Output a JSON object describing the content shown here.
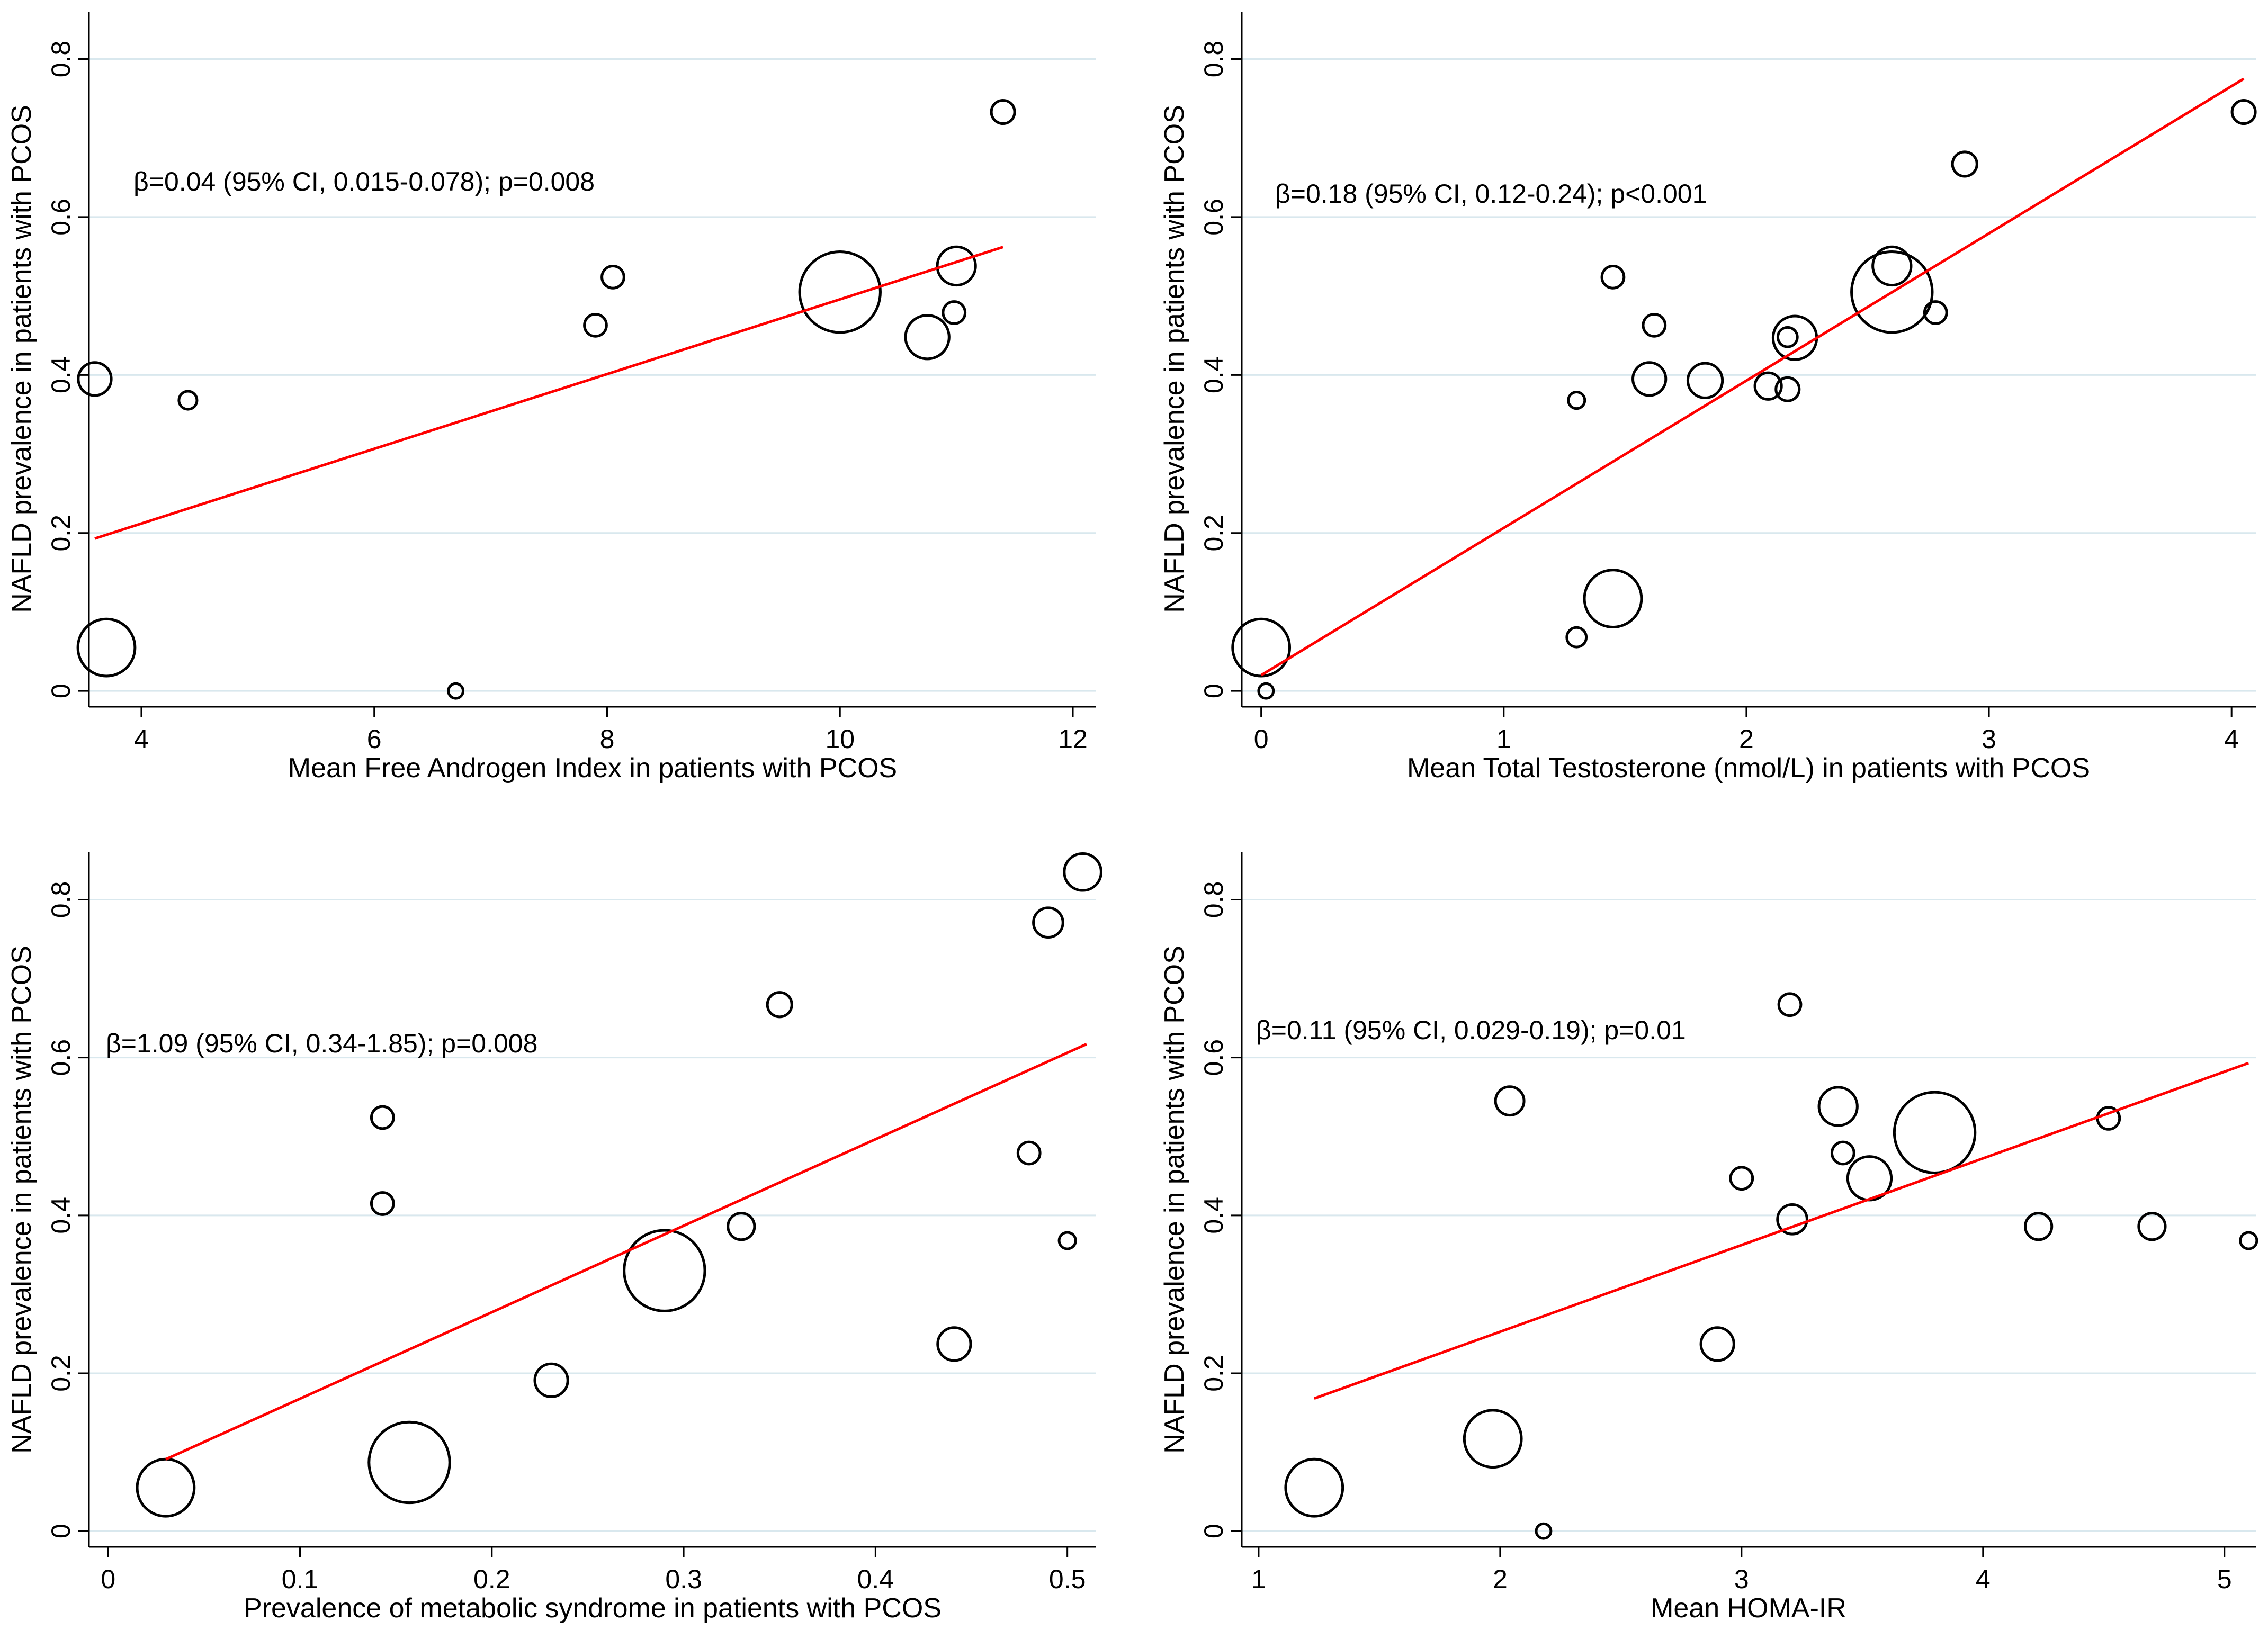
{
  "colors": {
    "axis": "#000000",
    "grid": "#d9e8ee",
    "fit_line": "#ff0000",
    "bubble_stroke": "#000000",
    "background": "#ffffff"
  },
  "chart_data": [
    {
      "type": "scatter",
      "xlabel": "Mean Free Androgen Index in patients with PCOS",
      "ylabel": "NAFLD prevalence in patients with PCOS",
      "xlim": [
        3.55,
        12.2
      ],
      "ylim": [
        -0.02,
        0.86
      ],
      "xticks": [
        4,
        6,
        8,
        10,
        12
      ],
      "xtick_labels": [
        "4",
        "6",
        "8",
        "10",
        "12"
      ],
      "yticks": [
        0,
        0.2,
        0.4,
        0.6,
        0.8
      ],
      "ytick_labels": [
        "0",
        "0.2",
        "0.4",
        "0.6",
        "0.8"
      ],
      "annotation": "β=0.04 (95% CI, 0.015-0.078); p=0.008",
      "fit_line": {
        "x": [
          3.6,
          11.4
        ],
        "y": [
          0.193,
          0.562
        ]
      },
      "points": [
        {
          "x": 3.6,
          "y": 0.395,
          "weight": 2
        },
        {
          "x": 3.7,
          "y": 0.055,
          "weight": 6
        },
        {
          "x": 4.4,
          "y": 0.368,
          "weight": 0.6
        },
        {
          "x": 6.7,
          "y": 0.0,
          "weight": 0.4
        },
        {
          "x": 7.9,
          "y": 0.463,
          "weight": 0.9
        },
        {
          "x": 8.05,
          "y": 0.524,
          "weight": 0.9
        },
        {
          "x": 10.0,
          "y": 0.505,
          "weight": 12
        },
        {
          "x": 10.75,
          "y": 0.448,
          "weight": 3.5
        },
        {
          "x": 10.98,
          "y": 0.479,
          "weight": 0.9
        },
        {
          "x": 11.0,
          "y": 0.538,
          "weight": 2.7
        },
        {
          "x": 11.4,
          "y": 0.733,
          "weight": 1
        }
      ]
    },
    {
      "type": "scatter",
      "xlabel": "Mean Total Testosterone (nmol/L) in patients with PCOS",
      "ylabel": "NAFLD prevalence in patients with PCOS",
      "xlim": [
        -0.08,
        4.1
      ],
      "ylim": [
        -0.02,
        0.86
      ],
      "xticks": [
        0,
        1,
        2,
        3,
        4
      ],
      "xtick_labels": [
        "0",
        "1",
        "2",
        "3",
        "4"
      ],
      "yticks": [
        0,
        0.2,
        0.4,
        0.6,
        0.8
      ],
      "ytick_labels": [
        "0",
        "0.2",
        "0.4",
        "0.6",
        "0.8"
      ],
      "annotation": "β=0.18 (95% CI, 0.12-0.24); p<0.001",
      "fit_line": {
        "x": [
          0.0,
          4.05
        ],
        "y": [
          0.02,
          0.775
        ]
      },
      "points": [
        {
          "x": 0.0,
          "y": 0.055,
          "weight": 6
        },
        {
          "x": 0.02,
          "y": 0.0,
          "weight": 0.4
        },
        {
          "x": 1.3,
          "y": 0.368,
          "weight": 0.5
        },
        {
          "x": 1.3,
          "y": 0.068,
          "weight": 0.7
        },
        {
          "x": 1.45,
          "y": 0.117,
          "weight": 6
        },
        {
          "x": 1.45,
          "y": 0.524,
          "weight": 0.9
        },
        {
          "x": 1.6,
          "y": 0.395,
          "weight": 2
        },
        {
          "x": 1.62,
          "y": 0.463,
          "weight": 0.9
        },
        {
          "x": 1.83,
          "y": 0.393,
          "weight": 2.2
        },
        {
          "x": 2.09,
          "y": 0.386,
          "weight": 1.3
        },
        {
          "x": 2.17,
          "y": 0.448,
          "weight": 0.7
        },
        {
          "x": 2.17,
          "y": 0.382,
          "weight": 1
        },
        {
          "x": 2.2,
          "y": 0.447,
          "weight": 3.5
        },
        {
          "x": 2.6,
          "y": 0.505,
          "weight": 12
        },
        {
          "x": 2.6,
          "y": 0.538,
          "weight": 2.7
        },
        {
          "x": 2.78,
          "y": 0.479,
          "weight": 0.9
        },
        {
          "x": 2.9,
          "y": 0.667,
          "weight": 1.1
        },
        {
          "x": 4.05,
          "y": 0.733,
          "weight": 1
        }
      ]
    },
    {
      "type": "scatter",
      "xlabel": "Prevalence of metabolic syndrome in patients with PCOS",
      "ylabel": "NAFLD prevalence in patients with PCOS",
      "xlim": [
        -0.01,
        0.515
      ],
      "ylim": [
        -0.02,
        0.86
      ],
      "xticks": [
        0,
        0.1,
        0.2,
        0.3,
        0.4,
        0.5
      ],
      "xtick_labels": [
        "0",
        "0.1",
        "0.2",
        "0.3",
        "0.4",
        "0.5"
      ],
      "yticks": [
        0,
        0.2,
        0.4,
        0.6,
        0.8
      ],
      "ytick_labels": [
        "0",
        "0.2",
        "0.4",
        "0.6",
        "0.8"
      ],
      "annotation": "β=1.09 (95% CI, 0.34-1.85); p=0.008",
      "fit_line": {
        "x": [
          0.03,
          0.51
        ],
        "y": [
          0.091,
          0.617
        ]
      },
      "points": [
        {
          "x": 0.03,
          "y": 0.055,
          "weight": 6
        },
        {
          "x": 0.143,
          "y": 0.415,
          "weight": 0.9
        },
        {
          "x": 0.143,
          "y": 0.524,
          "weight": 0.9
        },
        {
          "x": 0.157,
          "y": 0.087,
          "weight": 12
        },
        {
          "x": 0.231,
          "y": 0.191,
          "weight": 2
        },
        {
          "x": 0.29,
          "y": 0.33,
          "weight": 12
        },
        {
          "x": 0.33,
          "y": 0.386,
          "weight": 1.3
        },
        {
          "x": 0.35,
          "y": 0.667,
          "weight": 1.1
        },
        {
          "x": 0.441,
          "y": 0.237,
          "weight": 2
        },
        {
          "x": 0.48,
          "y": 0.479,
          "weight": 0.9
        },
        {
          "x": 0.49,
          "y": 0.771,
          "weight": 1.6
        },
        {
          "x": 0.5,
          "y": 0.368,
          "weight": 0.5
        },
        {
          "x": 0.508,
          "y": 0.835,
          "weight": 2.5
        }
      ]
    },
    {
      "type": "scatter",
      "xlabel": "Mean HOMA-IR",
      "ylabel": "NAFLD prevalence in patients with PCOS",
      "xlim": [
        0.93,
        5.13
      ],
      "ylim": [
        -0.02,
        0.86
      ],
      "xticks": [
        1,
        2,
        3,
        4,
        5
      ],
      "xtick_labels": [
        "1",
        "2",
        "3",
        "4",
        "5"
      ],
      "yticks": [
        0,
        0.2,
        0.4,
        0.6,
        0.8
      ],
      "ytick_labels": [
        "0",
        "0.2",
        "0.4",
        "0.6",
        "0.8"
      ],
      "annotation": "β=0.11 (95% CI, 0.029-0.19); p=0.01",
      "fit_line": {
        "x": [
          1.23,
          5.1
        ],
        "y": [
          0.168,
          0.593
        ]
      },
      "points": [
        {
          "x": 1.23,
          "y": 0.055,
          "weight": 6
        },
        {
          "x": 1.97,
          "y": 0.117,
          "weight": 6
        },
        {
          "x": 2.04,
          "y": 0.545,
          "weight": 1.5
        },
        {
          "x": 2.18,
          "y": 0.0,
          "weight": 0.4
        },
        {
          "x": 2.9,
          "y": 0.237,
          "weight": 2
        },
        {
          "x": 3.0,
          "y": 0.447,
          "weight": 0.9
        },
        {
          "x": 3.2,
          "y": 0.667,
          "weight": 0.9
        },
        {
          "x": 3.21,
          "y": 0.395,
          "weight": 1.6
        },
        {
          "x": 3.4,
          "y": 0.538,
          "weight": 2.7
        },
        {
          "x": 3.42,
          "y": 0.479,
          "weight": 0.9
        },
        {
          "x": 3.53,
          "y": 0.447,
          "weight": 3.5
        },
        {
          "x": 3.8,
          "y": 0.505,
          "weight": 12
        },
        {
          "x": 4.23,
          "y": 0.386,
          "weight": 1.3
        },
        {
          "x": 4.52,
          "y": 0.523,
          "weight": 0.9
        },
        {
          "x": 4.7,
          "y": 0.386,
          "weight": 1.3
        },
        {
          "x": 5.1,
          "y": 0.368,
          "weight": 0.5
        }
      ]
    }
  ]
}
